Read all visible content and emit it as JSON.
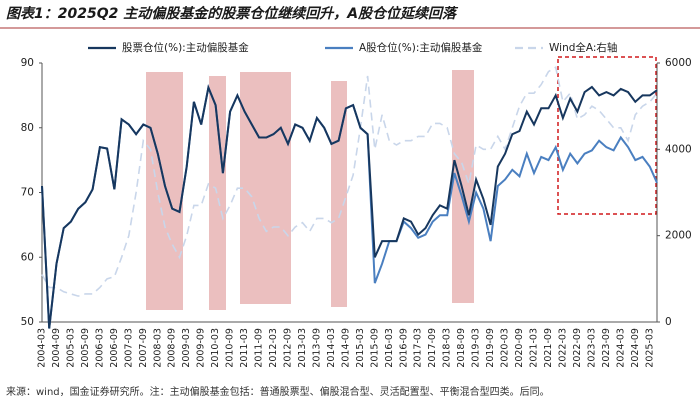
{
  "chart_data": {
    "type": "line",
    "title": "图表1：2025Q2 主动偏股基金的股票仓位继续回升，A股仓位延续回落",
    "source": "来源：wind，国金证券研究所。注：主动偏股基金包括：普通股票型、偏股混合型、灵活配置型、平衡混合型四类。后同。",
    "categories": [
      "2004-03",
      null,
      "2004-09",
      null,
      "2005-03",
      null,
      "2005-09",
      null,
      "2006-03",
      null,
      "2006-09",
      null,
      "2007-03",
      null,
      "2007-09",
      null,
      "2008-03",
      null,
      "2008-09",
      null,
      "2009-03",
      null,
      "2009-09",
      null,
      "2010-03",
      null,
      "2010-09",
      null,
      "2011-03",
      null,
      "2011-09",
      null,
      "2012-03",
      null,
      "2012-09",
      null,
      "2013-03",
      null,
      "2013-09",
      null,
      "2014-03",
      null,
      "2014-09",
      null,
      "2015-03",
      null,
      "2015-09",
      null,
      "2016-03",
      null,
      "2016-09",
      null,
      "2017-03",
      null,
      "2017-09",
      null,
      "2018-03",
      null,
      "2018-09",
      null,
      "2019-03",
      null,
      "2019-09",
      null,
      "2020-03",
      null,
      "2020-09",
      null,
      "2021-03",
      null,
      "2021-09",
      null,
      "2022-03",
      null,
      "2022-09",
      null,
      "2023-03",
      null,
      "2023-09",
      null,
      "2024-03",
      null,
      "2024-09",
      null,
      "2025-03",
      null
    ],
    "series": [
      {
        "name": "Wind全A:右轴",
        "color": "#c9d6ea",
        "axis": "y2",
        "dashed": true,
        "values": [
          1100,
          800,
          800,
          700,
          650,
          600,
          650,
          650,
          800,
          1000,
          1050,
          1500,
          2000,
          3000,
          4200,
          4000,
          3000,
          2200,
          1800,
          1500,
          2000,
          2700,
          2700,
          3200,
          3100,
          2400,
          2700,
          3100,
          3100,
          2900,
          2400,
          2100,
          2200,
          2200,
          2000,
          2200,
          2300,
          2100,
          2400,
          2400,
          2300,
          2400,
          2900,
          3400,
          4500,
          5700,
          4000,
          4800,
          4200,
          4100,
          4200,
          4200,
          4300,
          4300,
          4600,
          4600,
          4500,
          3900,
          3700,
          3200,
          4100,
          4000,
          4000,
          4300,
          4000,
          4500,
          5000,
          5300,
          5300,
          5500,
          5800,
          5900,
          5100,
          5300,
          4700,
          4800,
          5000,
          4900,
          4700,
          4500,
          4500,
          4200,
          4800,
          5000,
          5100,
          5300
        ]
      },
      {
        "name": "A股仓位(%):主动偏股基金",
        "color": "#4a7fc0",
        "values": [
          71,
          49,
          59,
          64.5,
          65.5,
          67.5,
          68.5,
          70.5,
          77,
          76.8,
          70.5,
          81.3,
          80.5,
          79,
          80.5,
          80,
          76,
          71,
          67.5,
          67,
          74,
          84,
          80.5,
          86.2,
          83.5,
          73,
          82.5,
          85,
          82.5,
          80.5,
          78.5,
          78.5,
          79,
          80,
          77.5,
          80.5,
          80,
          78,
          81.5,
          80,
          77.5,
          78,
          83,
          83.5,
          80,
          79,
          56,
          59,
          62.5,
          62.5,
          65.5,
          64.5,
          63,
          63.5,
          65.5,
          66.5,
          66.5,
          73,
          69.5,
          65.5,
          70,
          67.5,
          62.5,
          71,
          72,
          73.5,
          72.5,
          76,
          73,
          75.5,
          75,
          77,
          73.5,
          76,
          74.5,
          76,
          76.5,
          78,
          77,
          76.5,
          78.5,
          77,
          75,
          75.5,
          74,
          71.5
        ]
      },
      {
        "name": "股票仓位(%):主动偏股基金",
        "color": "#17375e",
        "values": [
          71,
          49,
          59,
          64.5,
          65.5,
          67.5,
          68.5,
          70.5,
          77,
          76.8,
          70.5,
          81.3,
          80.5,
          79,
          80.5,
          80,
          76,
          71,
          67.5,
          67,
          74,
          84,
          80.5,
          86.2,
          83.5,
          73,
          82.5,
          85,
          82.5,
          80.5,
          78.5,
          78.5,
          79,
          80,
          77.5,
          80.5,
          80,
          78,
          81.5,
          80,
          77.5,
          78,
          83,
          83.5,
          80,
          79,
          60,
          62.5,
          62.5,
          62.5,
          66,
          65.5,
          63.5,
          64.5,
          66.5,
          68,
          67.5,
          75,
          71,
          66.5,
          72,
          69,
          65,
          74,
          76,
          79,
          79.5,
          82.5,
          80.5,
          83,
          83,
          85,
          81.5,
          84.5,
          82.5,
          85.5,
          86.3,
          85,
          85.5,
          85,
          86,
          85.5,
          84,
          85,
          85,
          85.8
        ]
      }
    ],
    "legend_order": [
      2,
      1,
      0
    ],
    "ylim": [
      50,
      90
    ],
    "yticks": [
      50,
      60,
      70,
      80,
      90
    ],
    "y2lim": [
      0,
      6000
    ],
    "y2ticks": [
      0,
      2000,
      4000,
      6000
    ]
  }
}
